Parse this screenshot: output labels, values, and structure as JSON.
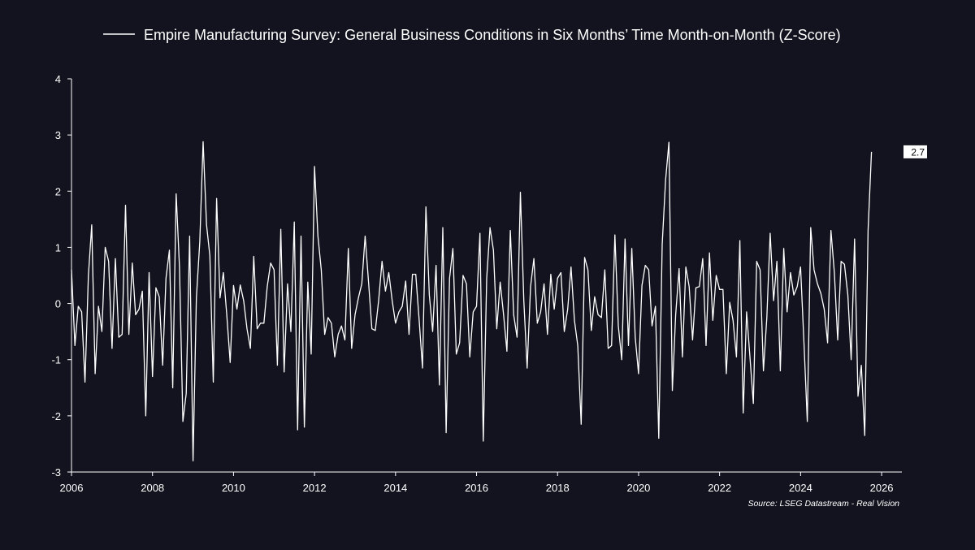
{
  "chart_data": {
    "type": "line",
    "title": "",
    "xlabel": "",
    "ylabel": "",
    "xlim": [
      2006,
      2026.5
    ],
    "ylim": [
      -3,
      4
    ],
    "x_ticks": [
      2006,
      2008,
      2010,
      2012,
      2014,
      2016,
      2018,
      2020,
      2022,
      2024,
      2026
    ],
    "x_tick_labels": [
      "2006",
      "2008",
      "2010",
      "2012",
      "2014",
      "2016",
      "2018",
      "2020",
      "2022",
      "2024",
      "2026"
    ],
    "y_ticks": [
      -3,
      -2,
      -1,
      0,
      1,
      2,
      3,
      4
    ],
    "y_tick_labels": [
      "-3",
      "-2",
      "-1",
      "0",
      "1",
      "2",
      "3",
      "4"
    ],
    "grid": false,
    "legend_position": "top",
    "series": [
      {
        "name": "Empire Manufacturing Survey: General Business Conditions in Six Months’ Time Month-on-Month (Z-Score)",
        "color": "#ffffff",
        "start": 2006.0,
        "step": 0.08333,
        "values": [
          0.6,
          -0.75,
          -0.05,
          -0.15,
          -1.4,
          0.5,
          1.4,
          -1.25,
          -0.05,
          -0.5,
          1.0,
          0.75,
          -0.8,
          0.8,
          -0.6,
          -0.55,
          1.75,
          -0.55,
          0.72,
          -0.2,
          -0.1,
          0.22,
          -2.0,
          0.55,
          -1.3,
          0.28,
          0.12,
          -1.1,
          0.45,
          0.95,
          -1.5,
          1.95,
          0.65,
          -2.1,
          -1.6,
          1.2,
          -2.8,
          0.1,
          1.1,
          2.88,
          1.4,
          0.85,
          -1.4,
          1.87,
          0.1,
          0.55,
          -0.2,
          -1.05,
          0.32,
          -0.1,
          0.33,
          0.05,
          -0.45,
          -0.8,
          0.84,
          -0.45,
          -0.35,
          -0.35,
          0.3,
          0.72,
          0.6,
          -1.1,
          1.32,
          -1.22,
          0.35,
          -0.5,
          1.45,
          -2.25,
          1.2,
          -2.2,
          0.38,
          -0.9,
          2.44,
          1.2,
          0.6,
          -0.55,
          -0.25,
          -0.35,
          -0.95,
          -0.55,
          -0.4,
          -0.65,
          0.98,
          -0.8,
          -0.2,
          0.1,
          0.35,
          1.2,
          0.38,
          -0.45,
          -0.48,
          0.05,
          0.75,
          0.22,
          0.55,
          0.05,
          -0.35,
          -0.15,
          -0.05,
          0.4,
          -0.55,
          0.52,
          0.52,
          -0.3,
          -1.15,
          1.72,
          0.15,
          -0.5,
          0.68,
          -1.45,
          1.35,
          -2.3,
          0.45,
          0.98,
          -0.9,
          -0.7,
          0.5,
          0.35,
          -0.95,
          -0.15,
          -0.05,
          1.25,
          -2.45,
          0.45,
          1.35,
          0.95,
          -0.45,
          0.38,
          -0.2,
          -0.85,
          1.3,
          -0.2,
          -0.6,
          1.98,
          0.05,
          -1.15,
          0.3,
          0.8,
          -0.35,
          -0.15,
          0.35,
          -0.55,
          0.52,
          -0.1,
          0.45,
          0.55,
          -0.5,
          -0.1,
          0.65,
          -0.3,
          -0.75,
          -2.15,
          0.82,
          0.6,
          -0.48,
          0.12,
          -0.2,
          -0.25,
          0.6,
          -0.8,
          -0.75,
          1.22,
          -0.4,
          -1.0,
          1.15,
          -0.75,
          0.98,
          -0.6,
          -1.25,
          0.32,
          0.68,
          0.6,
          -0.4,
          -0.05,
          -2.4,
          1.05,
          2.2,
          2.87,
          -1.55,
          -0.2,
          0.62,
          -0.95,
          0.65,
          0.3,
          -0.65,
          0.28,
          0.3,
          0.8,
          -0.75,
          0.9,
          -0.3,
          0.5,
          0.25,
          0.25,
          -1.25,
          0.02,
          -0.3,
          -0.95,
          1.12,
          -1.95,
          -0.15,
          -0.95,
          -1.78,
          0.75,
          0.6,
          -1.2,
          -0.25,
          1.25,
          0.05,
          0.75,
          -1.2,
          0.98,
          -0.15,
          0.55,
          0.15,
          0.3,
          0.65,
          -0.7,
          -2.1,
          1.35,
          0.6,
          0.35,
          0.18,
          -0.1,
          -0.7,
          1.3,
          0.55,
          -0.65,
          0.75,
          0.7,
          0.15,
          -1.0,
          1.15,
          -1.65,
          -1.1,
          -2.35,
          1.3,
          2.7
        ]
      }
    ],
    "annotations": [
      {
        "text": "2.7",
        "value": 2.7
      }
    ],
    "source": "Source: LSEG Datastream - Real Vision"
  },
  "colors": {
    "background": "#13131f",
    "line": "#ffffff",
    "axis": "#ffffff",
    "label_box": "#ffffff"
  }
}
